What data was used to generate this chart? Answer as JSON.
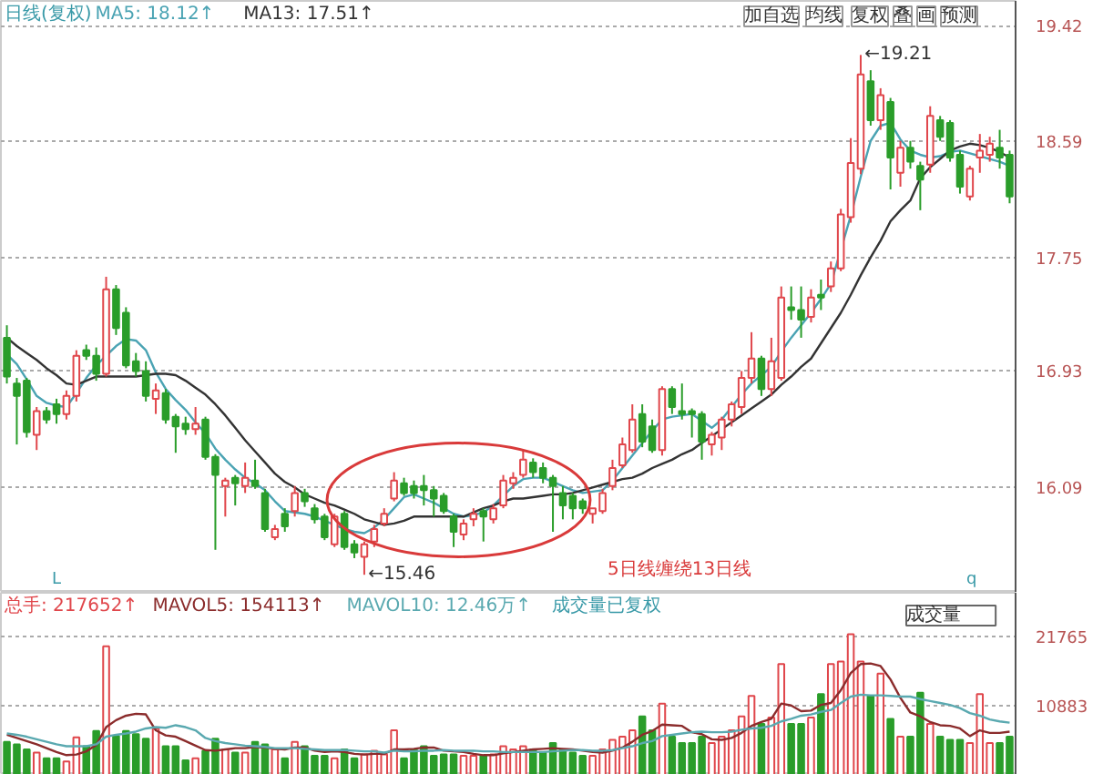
{
  "chart_data": [
    {
      "type": "candlestick",
      "title": "日线(复权)",
      "categories": [
        null,
        null,
        null,
        null,
        null,
        null,
        null,
        null,
        null,
        null,
        null,
        null,
        null,
        null,
        null,
        null,
        null,
        null,
        null,
        null,
        null,
        null,
        null,
        null,
        null,
        null,
        null,
        null,
        null,
        null,
        null,
        null,
        null,
        null,
        null,
        null,
        null,
        null,
        null,
        null,
        null,
        null,
        null,
        null,
        null,
        null,
        null,
        null,
        null,
        null,
        null,
        null,
        null,
        null,
        null,
        null,
        null,
        null,
        null,
        null,
        null,
        null,
        null,
        null,
        null,
        null,
        null,
        null,
        null,
        null,
        null,
        null,
        null,
        null,
        null,
        null,
        null,
        null,
        null,
        null,
        null,
        null,
        null,
        null,
        null,
        null,
        null,
        null,
        null,
        null,
        null,
        null,
        null,
        null,
        null,
        null,
        null,
        null,
        null,
        null,
        null,
        null
      ],
      "ohlc": [
        [
          17.17,
          17.26,
          16.84,
          16.89
        ],
        [
          16.84,
          16.88,
          16.4,
          16.75
        ],
        [
          16.86,
          16.88,
          16.45,
          16.49
        ],
        [
          16.47,
          16.67,
          16.36,
          16.64
        ],
        [
          16.64,
          16.67,
          16.55,
          16.58
        ],
        [
          16.69,
          16.73,
          16.55,
          16.62
        ],
        [
          16.62,
          16.79,
          16.58,
          16.75
        ],
        [
          16.75,
          17.08,
          16.71,
          17.04
        ],
        [
          17.08,
          17.12,
          17.01,
          17.04
        ],
        [
          17.04,
          17.1,
          16.86,
          16.91
        ],
        [
          16.91,
          17.61,
          16.89,
          17.52
        ],
        [
          17.52,
          17.55,
          17.19,
          17.24
        ],
        [
          17.35,
          17.39,
          16.95,
          16.97
        ],
        [
          17.0,
          17.06,
          16.89,
          16.93
        ],
        [
          16.93,
          17.0,
          16.71,
          16.75
        ],
        [
          16.73,
          16.84,
          16.62,
          16.79
        ],
        [
          16.77,
          16.8,
          16.55,
          16.58
        ],
        [
          16.6,
          16.62,
          16.34,
          16.53
        ],
        [
          16.55,
          16.6,
          16.47,
          16.51
        ],
        [
          16.51,
          16.67,
          16.47,
          16.55
        ],
        [
          16.58,
          16.6,
          16.29,
          16.31
        ],
        [
          16.31,
          16.33,
          15.64,
          16.18
        ],
        [
          16.1,
          16.16,
          15.88,
          16.14
        ],
        [
          16.16,
          16.18,
          15.96,
          16.12
        ],
        [
          16.1,
          16.27,
          16.05,
          16.16
        ],
        [
          16.14,
          16.29,
          16.08,
          16.1
        ],
        [
          16.05,
          16.08,
          15.77,
          15.79
        ],
        [
          15.73,
          15.82,
          15.71,
          15.79
        ],
        [
          15.9,
          15.94,
          15.77,
          15.81
        ],
        [
          15.92,
          16.1,
          15.88,
          16.05
        ],
        [
          16.05,
          16.08,
          15.95,
          15.99
        ],
        [
          15.94,
          15.97,
          15.83,
          15.86
        ],
        [
          15.88,
          15.9,
          15.71,
          15.73
        ],
        [
          15.68,
          15.9,
          15.66,
          15.88
        ],
        [
          15.9,
          15.92,
          15.64,
          15.66
        ],
        [
          15.68,
          15.71,
          15.58,
          15.62
        ],
        [
          15.59,
          15.7,
          15.46,
          15.68
        ],
        [
          15.7,
          15.82,
          15.66,
          15.79
        ],
        [
          15.83,
          15.94,
          15.81,
          15.9
        ],
        [
          16.01,
          16.2,
          15.99,
          16.14
        ],
        [
          16.12,
          16.16,
          16.03,
          16.05
        ],
        [
          16.1,
          16.14,
          16.01,
          16.05
        ],
        [
          16.1,
          16.18,
          15.96,
          16.07
        ],
        [
          16.07,
          16.1,
          15.88,
          16.01
        ],
        [
          16.03,
          16.05,
          15.9,
          15.92
        ],
        [
          15.88,
          15.9,
          15.66,
          15.77
        ],
        [
          15.75,
          15.86,
          15.71,
          15.83
        ],
        [
          15.86,
          15.94,
          15.81,
          15.9
        ],
        [
          15.92,
          15.94,
          15.7,
          15.88
        ],
        [
          15.86,
          15.97,
          15.83,
          15.94
        ],
        [
          15.96,
          16.18,
          15.94,
          16.14
        ],
        [
          16.12,
          16.2,
          16.08,
          16.16
        ],
        [
          16.18,
          16.36,
          16.16,
          16.29
        ],
        [
          16.27,
          16.3,
          16.16,
          16.2
        ],
        [
          16.23,
          16.27,
          16.12,
          16.16
        ],
        [
          16.16,
          16.18,
          15.77,
          16.1
        ],
        [
          16.05,
          16.1,
          15.86,
          15.96
        ],
        [
          16.03,
          16.05,
          15.86,
          15.94
        ],
        [
          15.99,
          16.01,
          15.9,
          15.94
        ],
        [
          15.9,
          15.94,
          15.83,
          15.94
        ],
        [
          15.92,
          16.08,
          15.9,
          16.05
        ],
        [
          16.1,
          16.29,
          16.07,
          16.23
        ],
        [
          16.25,
          16.45,
          16.23,
          16.4
        ],
        [
          16.36,
          16.69,
          16.34,
          16.58
        ],
        [
          16.62,
          16.69,
          16.38,
          16.42
        ],
        [
          16.53,
          16.58,
          16.34,
          16.36
        ],
        [
          16.36,
          16.82,
          16.32,
          16.8
        ],
        [
          16.8,
          16.82,
          16.62,
          16.67
        ],
        [
          16.64,
          16.84,
          16.58,
          16.62
        ],
        [
          16.64,
          16.66,
          16.45,
          16.62
        ],
        [
          16.62,
          16.64,
          16.29,
          16.42
        ],
        [
          16.4,
          16.49,
          16.32,
          16.47
        ],
        [
          16.45,
          16.6,
          16.36,
          16.58
        ],
        [
          16.58,
          16.71,
          16.53,
          16.69
        ],
        [
          16.67,
          16.93,
          16.62,
          16.88
        ],
        [
          16.88,
          17.21,
          16.84,
          17.02
        ],
        [
          17.02,
          17.04,
          16.75,
          16.8
        ],
        [
          16.8,
          17.17,
          16.75,
          17.0
        ],
        [
          16.88,
          17.54,
          16.86,
          17.46
        ],
        [
          17.39,
          17.54,
          17.3,
          17.37
        ],
        [
          17.37,
          17.54,
          17.17,
          17.3
        ],
        [
          17.32,
          17.52,
          17.28,
          17.46
        ],
        [
          17.48,
          17.59,
          17.37,
          17.46
        ],
        [
          17.54,
          17.72,
          17.5,
          17.67
        ],
        [
          17.67,
          18.1,
          17.65,
          18.06
        ],
        [
          18.04,
          18.61,
          18.0,
          18.43
        ],
        [
          18.39,
          19.21,
          18.35,
          19.07
        ],
        [
          19.02,
          19.1,
          18.7,
          18.74
        ],
        [
          18.74,
          18.97,
          18.67,
          18.92
        ],
        [
          18.87,
          18.9,
          18.24,
          18.47
        ],
        [
          18.36,
          18.59,
          18.26,
          18.54
        ],
        [
          18.54,
          18.59,
          18.39,
          18.44
        ],
        [
          18.41,
          18.44,
          18.09,
          18.31
        ],
        [
          18.42,
          18.84,
          18.36,
          18.77
        ],
        [
          18.74,
          18.77,
          18.59,
          18.62
        ],
        [
          18.72,
          18.74,
          18.44,
          18.47
        ],
        [
          18.49,
          18.52,
          18.21,
          18.26
        ],
        [
          18.19,
          18.41,
          18.16,
          18.39
        ],
        [
          18.47,
          18.64,
          18.36,
          18.52
        ],
        [
          18.49,
          18.62,
          18.44,
          18.57
        ],
        [
          18.54,
          18.67,
          18.39,
          18.47
        ],
        [
          18.49,
          18.52,
          18.14,
          18.19
        ]
      ],
      "colors": [
        "#2a9d2a",
        "#2a9d2a",
        "#2a9d2a",
        "#e0464b",
        "#2a9d2a",
        "#2a9d2a",
        "#e0464b",
        "#e0464b",
        "#2a9d2a",
        "#2a9d2a",
        "#e0464b",
        "#2a9d2a",
        "#2a9d2a",
        "#2a9d2a",
        "#2a9d2a",
        "#e0464b",
        "#2a9d2a",
        "#2a9d2a",
        "#2a9d2a",
        "#e0464b",
        "#2a9d2a",
        "#2a9d2a",
        "#e0464b",
        "#2a9d2a",
        "#e0464b",
        "#2a9d2a",
        "#2a9d2a",
        "#e0464b",
        "#2a9d2a",
        "#e0464b",
        "#2a9d2a",
        "#2a9d2a",
        "#2a9d2a",
        "#e0464b",
        "#2a9d2a",
        "#2a9d2a",
        "#e0464b",
        "#e0464b",
        "#e0464b",
        "#e0464b",
        "#2a9d2a",
        "#2a9d2a",
        "#2a9d2a",
        "#2a9d2a",
        "#2a9d2a",
        "#2a9d2a",
        "#e0464b",
        "#e0464b",
        "#2a9d2a",
        "#e0464b",
        "#e0464b",
        "#e0464b",
        "#e0464b",
        "#2a9d2a",
        "#2a9d2a",
        "#2a9d2a",
        "#2a9d2a",
        "#2a9d2a",
        "#2a9d2a",
        "#e0464b",
        "#e0464b",
        "#e0464b",
        "#e0464b",
        "#e0464b",
        "#2a9d2a",
        "#2a9d2a",
        "#e0464b",
        "#2a9d2a",
        "#2a9d2a",
        "#2a9d2a",
        "#2a9d2a",
        "#e0464b",
        "#e0464b",
        "#e0464b",
        "#e0464b",
        "#e0464b",
        "#2a9d2a",
        "#e0464b",
        "#e0464b",
        "#2a9d2a",
        "#2a9d2a",
        "#e0464b",
        "#2a9d2a",
        "#e0464b",
        "#e0464b",
        "#e0464b",
        "#e0464b",
        "#2a9d2a",
        "#e0464b",
        "#2a9d2a",
        "#e0464b",
        "#2a9d2a",
        "#2a9d2a",
        "#e0464b",
        "#2a9d2a",
        "#2a9d2a",
        "#2a9d2a",
        "#e0464b",
        "#e0464b",
        "#e0464b",
        "#2a9d2a",
        "#2a9d2a"
      ],
      "series": [
        {
          "name": "MA5: 18.12↑",
          "type": "line",
          "color": "#4aa3b3",
          "values": [
            17.05,
            16.98,
            16.87,
            16.75,
            16.7,
            16.68,
            16.67,
            16.77,
            16.88,
            16.97,
            17.04,
            17.11,
            17.16,
            17.15,
            17.08,
            16.92,
            16.8,
            16.72,
            16.65,
            16.56,
            16.48,
            16.37,
            16.29,
            16.22,
            16.16,
            16.12,
            16.07,
            15.99,
            15.92,
            15.91,
            15.9,
            15.88,
            15.85,
            15.82,
            15.79,
            15.77,
            15.76,
            15.8,
            15.86,
            15.94,
            16.02,
            16.04,
            16.01,
            15.98,
            15.94,
            15.9,
            15.88,
            15.89,
            15.91,
            15.96,
            16.03,
            16.1,
            16.15,
            16.16,
            16.16,
            16.13,
            16.1,
            16.07,
            16.05,
            16.06,
            16.07,
            16.14,
            16.23,
            16.32,
            16.41,
            16.5,
            16.58,
            16.6,
            16.61,
            16.62,
            16.57,
            16.52,
            16.58,
            16.67,
            16.76,
            16.84,
            16.9,
            16.96,
            17.07,
            17.17,
            17.26,
            17.35,
            17.45,
            17.56,
            null,
            18.05,
            18.33,
            18.59,
            18.7,
            18.72,
            18.6,
            18.52,
            18.49,
            18.47,
            18.48,
            18.51,
            18.52,
            18.5,
            18.48,
            18.46,
            18.44,
            18.41
          ]
        },
        {
          "name": "MA13: 17.51↑",
          "type": "line",
          "color": "#333333",
          "values": [
            17.17,
            17.11,
            17.06,
            17.01,
            16.95,
            16.9,
            16.84,
            16.83,
            16.86,
            16.89,
            16.89,
            16.89,
            16.89,
            16.89,
            16.9,
            16.91,
            16.91,
            16.9,
            16.86,
            16.81,
            16.76,
            16.69,
            16.61,
            16.52,
            16.43,
            16.35,
            16.27,
            16.19,
            16.13,
            16.09,
            16.04,
            16.01,
            15.98,
            15.96,
            15.93,
            15.9,
            15.86,
            15.84,
            15.82,
            15.83,
            15.85,
            15.88,
            15.88,
            15.88,
            15.88,
            15.88,
            15.88,
            15.91,
            15.94,
            15.96,
            15.99,
            16.01,
            16.01,
            16.02,
            16.03,
            16.04,
            16.04,
            16.05,
            16.07,
            16.09,
            16.11,
            16.13,
            16.15,
            16.16,
            16.19,
            16.23,
            16.26,
            16.29,
            16.33,
            16.36,
            16.41,
            16.46,
            16.51,
            16.56,
            16.61,
            16.66,
            16.71,
            16.76,
            16.83,
            16.89,
            16.96,
            17.02,
            17.13,
            17.24,
            17.35,
            17.48,
            17.62,
            17.75,
            17.87,
            18.01,
            18.09,
            18.16,
            18.32,
            18.4,
            18.46,
            18.52,
            18.55,
            18.57,
            18.56,
            18.54,
            18.51,
            18.47
          ]
        }
      ],
      "ylim": [
        15.33,
        19.6
      ],
      "yticks": [
        16.09,
        16.93,
        17.75,
        18.59,
        19.42
      ],
      "grid": "y",
      "tick_labels": "y",
      "annotations": [
        "加自选",
        "均线",
        "复权",
        "叠",
        "画",
        "预测",
        "5日线缠绕13日线",
        "L",
        "q",
        "←15.46",
        "←19.21"
      ]
    },
    {
      "type": "bar",
      "categories": [
        null,
        null,
        null,
        null,
        null,
        null,
        null,
        null,
        null,
        null,
        null,
        null,
        null,
        null,
        null,
        null,
        null,
        null,
        null,
        null,
        null,
        null,
        null,
        null,
        null,
        null,
        null,
        null,
        null,
        null,
        null,
        null,
        null,
        null,
        null,
        null,
        null,
        null,
        null,
        null,
        null,
        null,
        null,
        null,
        null,
        null,
        null,
        null,
        null,
        null,
        null,
        null,
        null,
        null,
        null,
        null,
        null,
        null,
        null,
        null,
        null,
        null,
        null,
        null,
        null,
        null,
        null,
        null,
        null,
        null,
        null,
        null,
        null,
        null,
        null,
        null,
        null,
        null,
        null,
        null,
        null,
        null,
        null,
        null,
        null,
        null,
        null,
        null,
        null,
        null,
        null,
        null,
        null,
        null,
        null,
        null,
        null,
        null,
        null,
        null,
        null,
        null
      ],
      "series": [
        {
          "name": "总手: 217652↑",
          "type": "bar",
          "colors": [
            "#2a9d2a",
            "#2a9d2a",
            "#2a9d2a",
            "#e0464b",
            "#2a9d2a",
            "#2a9d2a",
            "#e0464b",
            "#e0464b",
            "#2a9d2a",
            "#2a9d2a",
            "#e0464b",
            "#2a9d2a",
            "#2a9d2a",
            "#2a9d2a",
            "#2a9d2a",
            "#e0464b",
            "#2a9d2a",
            "#2a9d2a",
            "#2a9d2a",
            "#e0464b",
            "#2a9d2a",
            "#2a9d2a",
            "#e0464b",
            "#2a9d2a",
            "#e0464b",
            "#2a9d2a",
            "#2a9d2a",
            "#e0464b",
            "#2a9d2a",
            "#e0464b",
            "#2a9d2a",
            "#2a9d2a",
            "#2a9d2a",
            "#e0464b",
            "#2a9d2a",
            "#2a9d2a",
            "#e0464b",
            "#e0464b",
            "#e0464b",
            "#e0464b",
            "#2a9d2a",
            "#2a9d2a",
            "#2a9d2a",
            "#2a9d2a",
            "#2a9d2a",
            "#2a9d2a",
            "#e0464b",
            "#e0464b",
            "#2a9d2a",
            "#e0464b",
            "#e0464b",
            "#e0464b",
            "#e0464b",
            "#2a9d2a",
            "#2a9d2a",
            "#2a9d2a",
            "#2a9d2a",
            "#2a9d2a",
            "#2a9d2a",
            "#e0464b",
            "#e0464b",
            "#e0464b",
            "#e0464b",
            "#e0464b",
            "#2a9d2a",
            "#2a9d2a",
            "#e0464b",
            "#2a9d2a",
            "#2a9d2a",
            "#2a9d2a",
            "#2a9d2a",
            "#e0464b",
            "#e0464b",
            "#e0464b",
            "#e0464b",
            "#e0464b",
            "#2a9d2a",
            "#e0464b",
            "#e0464b",
            "#2a9d2a",
            "#2a9d2a",
            "#e0464b",
            "#2a9d2a",
            "#e0464b",
            "#e0464b",
            "#e0464b",
            "#e0464b",
            "#2a9d2a",
            "#e0464b",
            "#2a9d2a",
            "#e0464b",
            "#2a9d2a",
            "#2a9d2a",
            "#e0464b",
            "#2a9d2a",
            "#2a9d2a",
            "#2a9d2a",
            "#e0464b",
            "#e0464b",
            "#e0464b",
            "#2a9d2a",
            "#2a9d2a"
          ],
          "values": [
            5200,
            4800,
            4000,
            3500,
            2600,
            2600,
            2100,
            5900,
            4500,
            6900,
            20200,
            6100,
            6900,
            6400,
            5700,
            7300,
            4500,
            4500,
            2300,
            2600,
            3800,
            5700,
            4000,
            3500,
            3500,
            5200,
            4800,
            4000,
            2600,
            5200,
            4500,
            3000,
            3000,
            2600,
            4000,
            2600,
            3200,
            3800,
            3200,
            7000,
            2600,
            4000,
            4500,
            3000,
            3200,
            3200,
            3000,
            3000,
            3000,
            3200,
            4500,
            4000,
            4500,
            4000,
            3500,
            5000,
            4000,
            3500,
            3000,
            3000,
            4000,
            5500,
            6000,
            7000,
            9200,
            7000,
            11200,
            6000,
            5000,
            5000,
            6000,
            5000,
            6000,
            7000,
            9200,
            12400,
            8000,
            9000,
            17400,
            8000,
            8000,
            9000,
            12700,
            17400,
            17800,
            22100,
            17800,
            12400,
            15900,
            8800,
            6000,
            6000,
            12900,
            8000,
            6000,
            5500,
            5500,
            5000,
            12700,
            5000,
            5000,
            6000
          ]
        },
        {
          "name": "MAVOL5: 154113↑",
          "type": "line",
          "color": "#8b2c2c",
          "values": [
            6300,
            5800,
            5300,
            4800,
            4200,
            3600,
            3100,
            3200,
            3700,
            4700,
            7500,
            8600,
            9300,
            9600,
            9500,
            7000,
            6200,
            6000,
            5300,
            4600,
            3900,
            3800,
            4000,
            4200,
            4200,
            4400,
            4300,
            4100,
            4000,
            4300,
            4300,
            3800,
            3600,
            3700,
            3600,
            3300,
            3200,
            3300,
            3300,
            4000,
            4000,
            4100,
            4300,
            4300,
            3800,
            3700,
            3600,
            3300,
            3100,
            3100,
            3400,
            3600,
            3800,
            4000,
            4100,
            4200,
            4100,
            4000,
            3800,
            3600,
            3500,
            3800,
            4300,
            5200,
            6300,
            6900,
            7900,
            7800,
            7700,
            6700,
            6400,
            5600,
            5500,
            5800,
            6600,
            7700,
            8300,
            8800,
            11200,
            10900,
            10000,
            10100,
            11000,
            11300,
            13300,
            16000,
            17400,
            17500,
            17100,
            15000,
            12100,
            9800,
            9200,
            8300,
            7800,
            7700,
            7300,
            6100,
            7000,
            6600,
            6600,
            6800
          ]
        },
        {
          "name": "MAVOL10: 12.46万↑",
          "type": "line",
          "color": "#5aa9b0",
          "values": [
            6500,
            6300,
            6000,
            5600,
            5200,
            4800,
            4500,
            4500,
            4500,
            4800,
            6000,
            6300,
            6500,
            6800,
            7300,
            7500,
            7400,
            7800,
            7500,
            7000,
            5800,
            5300,
            5000,
            4800,
            4600,
            4500,
            4400,
            4200,
            4200,
            4200,
            4100,
            4000,
            3900,
            3900,
            3900,
            3800,
            3700,
            3700,
            3500,
            3800,
            3700,
            3700,
            3800,
            3800,
            3900,
            3800,
            3800,
            3800,
            3700,
            3700,
            3600,
            3600,
            3600,
            3600,
            3600,
            3700,
            3800,
            3900,
            3900,
            3800,
            3800,
            3900,
            4200,
            4500,
            5000,
            5300,
            6100,
            6300,
            6500,
            6700,
            6800,
            6700,
            6700,
            6800,
            7100,
            7300,
            7400,
            7700,
            8400,
            8800,
            9300,
            9500,
            9900,
            10200,
            11300,
            12300,
            12600,
            12500,
            12500,
            12400,
            12300,
            12300,
            11900,
            11600,
            11300,
            11000,
            10500,
            9700,
            9300,
            8700,
            8400,
            8200
          ]
        }
      ],
      "ylim": [
        0,
        28600
      ],
      "yticks": [
        10883,
        21765
      ],
      "grid": "y",
      "tick_labels": "y",
      "annotations": [
        "成交量已复权",
        "成交量"
      ]
    }
  ]
}
